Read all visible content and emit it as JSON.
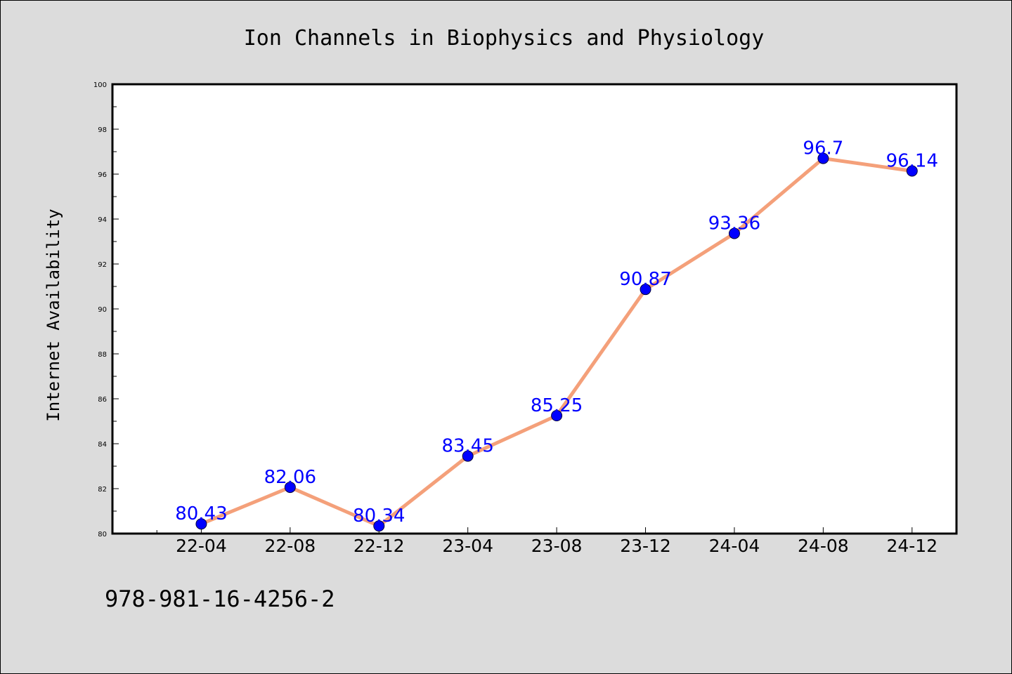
{
  "chart_data": {
    "type": "line",
    "title": "Ion Channels in Biophysics and Physiology",
    "xlabel": "",
    "ylabel": "Internet Availability",
    "categories": [
      "22-04",
      "22-08",
      "22-12",
      "23-04",
      "23-08",
      "23-12",
      "24-04",
      "24-08",
      "24-12"
    ],
    "series": [
      {
        "values": [
          80.43,
          82.06,
          80.34,
          83.45,
          85.25,
          90.87,
          93.36,
          96.7,
          96.14
        ],
        "labels": [
          "80.43",
          "82.06",
          "80.34",
          "83.45",
          "85.25",
          "90.87",
          "93.36",
          "96.7",
          "96.14"
        ],
        "line_color": "#f4a07a",
        "marker_color": "#0000ff"
      }
    ],
    "yticks": [
      "80",
      "82",
      "84",
      "86",
      "88",
      "90",
      "92",
      "94",
      "96",
      "98",
      "100"
    ],
    "ylim": [
      80,
      100
    ],
    "x_range": [
      -1.0,
      8.5
    ],
    "grid": false,
    "legend": "none"
  },
  "footer": {
    "isbn": "978-981-16-4256-2"
  },
  "colors": {
    "background": "#dcdcdc",
    "plot_background": "#ffffff",
    "line": "#f4a07a",
    "marker": "#0000ff",
    "data_label": "#0000ff"
  }
}
